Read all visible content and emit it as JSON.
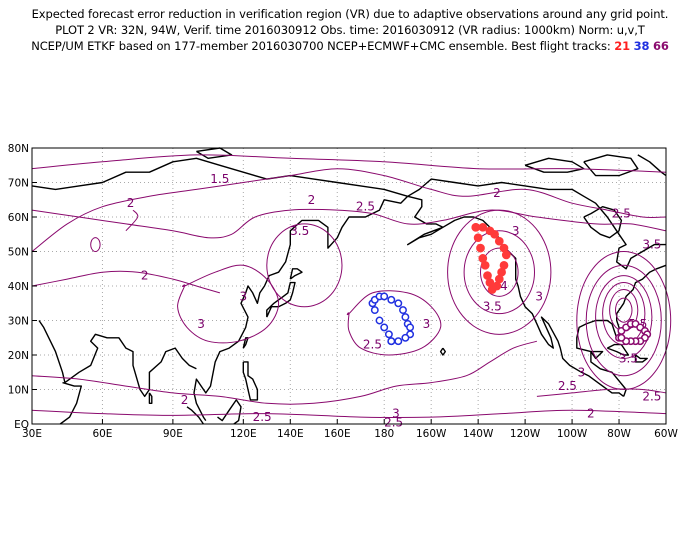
{
  "header": {
    "line1": "Expected forecast error reduction in verification region (VR) due to adaptive observations around any grid point.",
    "line2": "PLOT 2 VR: 32N, 94W, Verif. time 2016030912 Obs. time: 2016030912 (VR radius: 1000km) Norm: u,v,T",
    "line3_prefix": "NCEP/UM ETKF based on 177-member 2016030700 NCEP+ECMWF+CMC ensemble. Best flight tracks:",
    "track_ids": [
      "21",
      "38",
      "66"
    ]
  },
  "colors": {
    "contour": "#8a0a6e",
    "track_21": "#ff3a3a",
    "track_38": "#2030e0",
    "track_66": "#8a0a6e",
    "coast": "#000000"
  },
  "map": {
    "lon_range": [
      30,
      300
    ],
    "lat_range": [
      0,
      80
    ],
    "lon_tick_labels": [
      "30E",
      "60E",
      "90E",
      "120E",
      "140E",
      "160E",
      "180",
      "160W",
      "140W",
      "120W",
      "100W",
      "80W",
      "60W"
    ],
    "lon_tick_values": [
      30,
      60,
      90,
      120,
      140,
      160,
      180,
      200,
      220,
      240,
      260,
      280,
      300
    ],
    "lat_tick_labels": [
      "EQ",
      "10N",
      "20N",
      "30N",
      "40N",
      "50N",
      "60N",
      "70N",
      "80N"
    ],
    "lat_tick_values": [
      0,
      10,
      20,
      30,
      40,
      50,
      60,
      70,
      80
    ],
    "grid": "dotted"
  },
  "contour_labels": [
    {
      "text": "1.5",
      "lon": 110,
      "lat": 71
    },
    {
      "text": "2",
      "lon": 72,
      "lat": 64
    },
    {
      "text": "2",
      "lon": 149,
      "lat": 65
    },
    {
      "text": "2.5",
      "lon": 172,
      "lat": 63
    },
    {
      "text": "2",
      "lon": 228,
      "lat": 67
    },
    {
      "text": "2.5",
      "lon": 281,
      "lat": 61
    },
    {
      "text": "3.5",
      "lon": 144,
      "lat": 56
    },
    {
      "text": "3",
      "lon": 236,
      "lat": 56
    },
    {
      "text": "3.5",
      "lon": 294,
      "lat": 52
    },
    {
      "text": "2",
      "lon": 78,
      "lat": 43
    },
    {
      "text": "4",
      "lon": 231,
      "lat": 40
    },
    {
      "text": "3",
      "lon": 120,
      "lat": 37
    },
    {
      "text": "3",
      "lon": 246,
      "lat": 37
    },
    {
      "text": "3.5",
      "lon": 226,
      "lat": 34
    },
    {
      "text": "3",
      "lon": 102,
      "lat": 29
    },
    {
      "text": "3",
      "lon": 198,
      "lat": 29
    },
    {
      "text": "5.5",
      "lon": 288,
      "lat": 29
    },
    {
      "text": "2.5",
      "lon": 175,
      "lat": 23
    },
    {
      "text": "3.5",
      "lon": 284,
      "lat": 19
    },
    {
      "text": "3",
      "lon": 264,
      "lat": 15
    },
    {
      "text": "2.5",
      "lon": 258,
      "lat": 11
    },
    {
      "text": "2",
      "lon": 95,
      "lat": 7
    },
    {
      "text": "2.5",
      "lon": 294,
      "lat": 8
    },
    {
      "text": "2",
      "lon": 268,
      "lat": 3
    },
    {
      "text": "2.5",
      "lon": 128,
      "lat": 2
    },
    {
      "text": "3",
      "lon": 185,
      "lat": 3
    },
    {
      "text": "2.5",
      "lon": 184,
      "lat": 0.5
    }
  ],
  "flight_tracks": {
    "21": [
      [
        219,
        57
      ],
      [
        220,
        54
      ],
      [
        221,
        51
      ],
      [
        222,
        48
      ],
      [
        223,
        46
      ],
      [
        224,
        43
      ],
      [
        225,
        41
      ],
      [
        226,
        39
      ],
      [
        228,
        40
      ],
      [
        229,
        42
      ],
      [
        230,
        44
      ],
      [
        231,
        46
      ],
      [
        232,
        49
      ],
      [
        231,
        51
      ],
      [
        229,
        53
      ],
      [
        227,
        55
      ],
      [
        225,
        56
      ],
      [
        222,
        57
      ],
      [
        219,
        57
      ]
    ],
    "38": [
      [
        183,
        24
      ],
      [
        182,
        26
      ],
      [
        180,
        28
      ],
      [
        178,
        30
      ],
      [
        176,
        33
      ],
      [
        175,
        35
      ],
      [
        176,
        36
      ],
      [
        178,
        37
      ],
      [
        180,
        37
      ],
      [
        183,
        36
      ],
      [
        186,
        35
      ],
      [
        188,
        33
      ],
      [
        189,
        31
      ],
      [
        190,
        29
      ],
      [
        191,
        28
      ],
      [
        191,
        26
      ],
      [
        189,
        25
      ],
      [
        186,
        24
      ],
      [
        183,
        24
      ]
    ],
    "66": [
      [
        280,
        25
      ],
      [
        281,
        27
      ],
      [
        283,
        28
      ],
      [
        285,
        29
      ],
      [
        287,
        29
      ],
      [
        289,
        28
      ],
      [
        291,
        27
      ],
      [
        292,
        26
      ],
      [
        291,
        25
      ],
      [
        289,
        24
      ],
      [
        287,
        24
      ],
      [
        285,
        24
      ],
      [
        283,
        24
      ],
      [
        281,
        25
      ]
    ]
  }
}
